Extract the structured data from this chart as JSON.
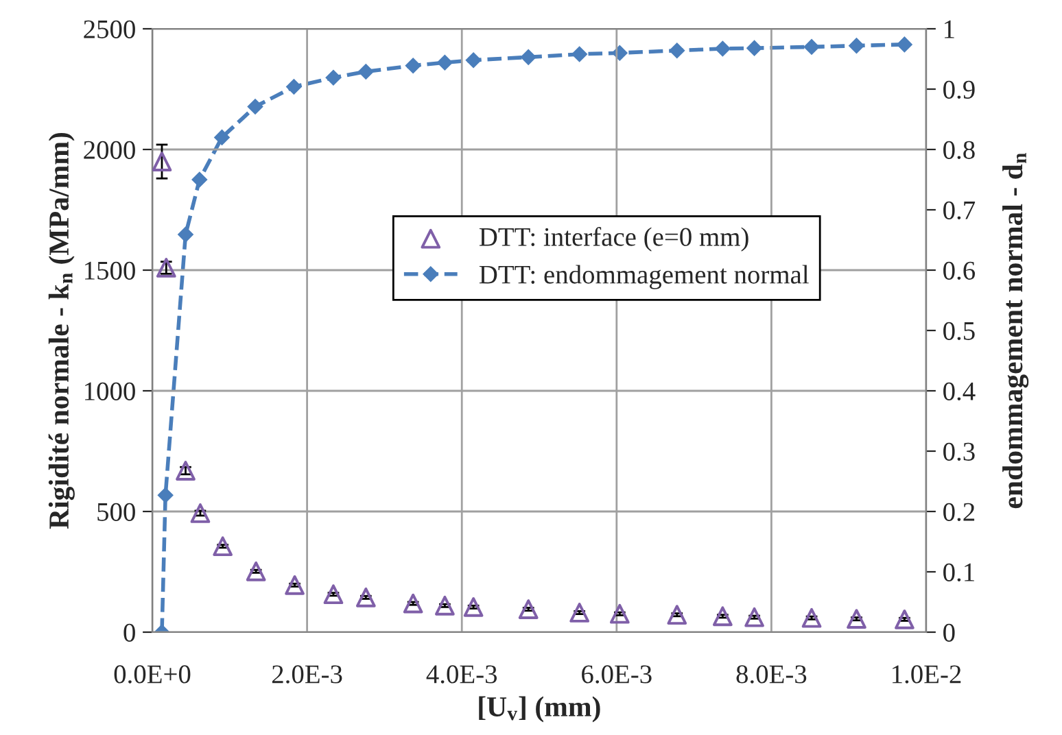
{
  "chart_data": {
    "type": "scatter",
    "xlabel": "[U$_{v}$] (mm)",
    "ylabel": "Rigidité normale - k$_{n}$ (MPa/mm)",
    "y2label": "endommagement normal - d$_{n}$",
    "x": [
      0.000124,
      0.00018,
      0.00043,
      0.00062,
      0.00091,
      0.00134,
      0.00184,
      0.00234,
      0.00276,
      0.00337,
      0.00378,
      0.00415,
      0.00486,
      0.00552,
      0.00604,
      0.00678,
      0.00737,
      0.00778,
      0.00852,
      0.0091,
      0.00972
    ],
    "series": [
      {
        "name": "DTT: interface (e=0 mm)",
        "marker": "triangle",
        "color": "#7f5fa8",
        "values": [
          1950,
          1510,
          669,
          493,
          356,
          252,
          195,
          157,
          144,
          119,
          110,
          104,
          95,
          81,
          76,
          72,
          66,
          62,
          59,
          55,
          53
        ],
        "errors": [
          70,
          25,
          15,
          10,
          6,
          6,
          6,
          6,
          6,
          6,
          6,
          6,
          6,
          6,
          6,
          6,
          6,
          6,
          6,
          6,
          6
        ]
      },
      {
        "name": "DTT: endommagement normal",
        "type": "line",
        "marker": "diamond",
        "line_style": "dashed",
        "axis": "y2",
        "color": "#4a7ebb",
        "x": [
          0.000124,
          0.00017,
          0.00043,
          0.00061,
          0.0009,
          0.00133,
          0.00183,
          0.00234,
          0.00276,
          0.00337,
          0.00378,
          0.00415,
          0.00486,
          0.00552,
          0.00604,
          0.00678,
          0.00737,
          0.00778,
          0.00852,
          0.0091,
          0.00972
        ],
        "values": [
          0,
          0.227,
          0.659,
          0.75,
          0.82,
          0.871,
          0.904,
          0.919,
          0.929,
          0.939,
          0.944,
          0.948,
          0.953,
          0.958,
          0.96,
          0.964,
          0.967,
          0.968,
          0.97,
          0.972,
          0.974
        ]
      }
    ],
    "xlim": [
      0,
      0.01
    ],
    "xticks": [
      {
        "value": 0,
        "label": "0.0E+0"
      },
      {
        "value": 0.002,
        "label": "2.0E-3"
      },
      {
        "value": 0.004,
        "label": "4.0E-3"
      },
      {
        "value": 0.006,
        "label": "6.0E-3"
      },
      {
        "value": 0.008,
        "label": "8.0E-3"
      },
      {
        "value": 0.01,
        "label": "1.0E-2"
      }
    ],
    "ylim": [
      0,
      2500
    ],
    "yticks": [
      0,
      500,
      1000,
      1500,
      2000,
      2500
    ],
    "y2lim": [
      0,
      1
    ],
    "y2ticks": [
      0,
      0.1,
      0.2,
      0.3,
      0.4,
      0.5,
      0.6,
      0.7,
      0.8,
      0.9,
      1
    ],
    "grid": true,
    "legend": "right"
  }
}
